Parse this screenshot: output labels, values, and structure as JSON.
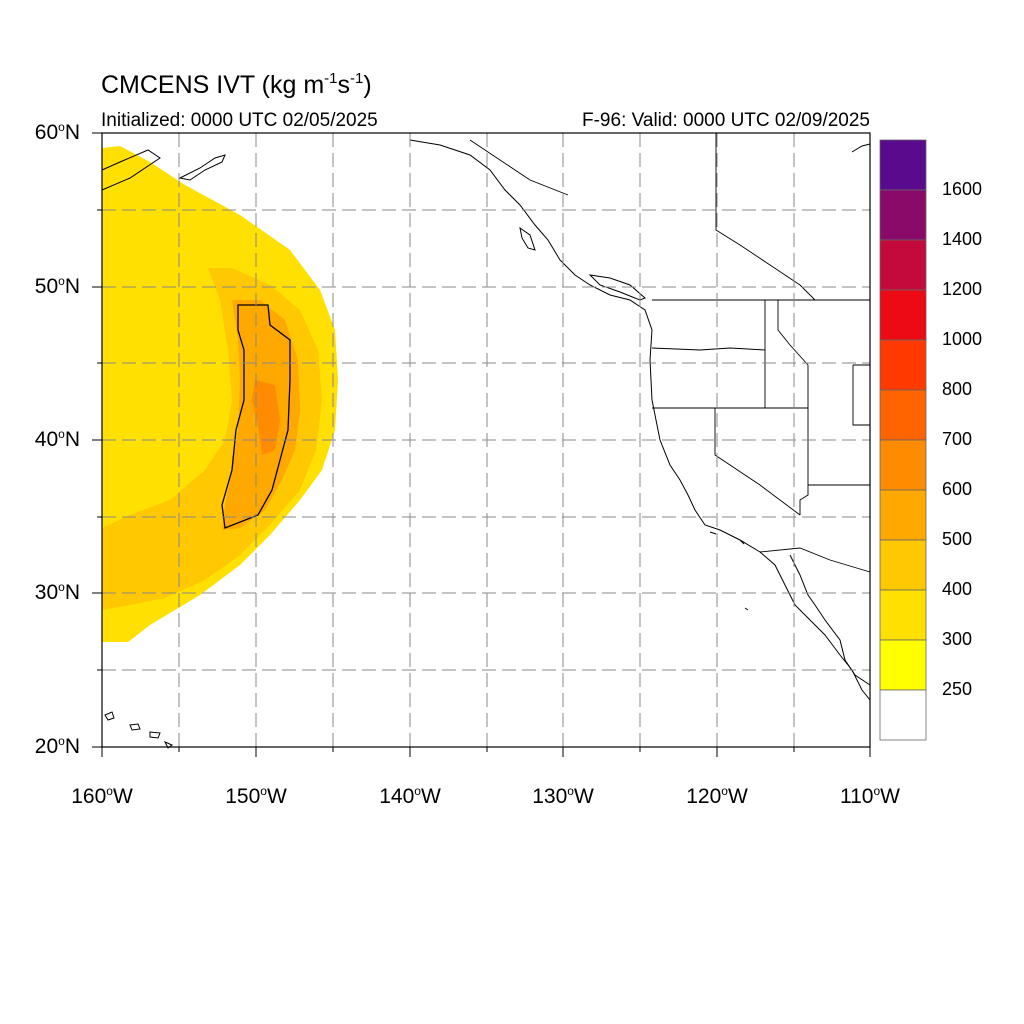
{
  "title": {
    "prefix": "CMCENS IVT (kg m",
    "exp1": "-1",
    "mid": "s",
    "exp2": "-1",
    "suffix": ")"
  },
  "initialized": "Initialized: 0000 UTC 02/05/2025",
  "valid": "F-96: Valid: 0000 UTC 02/09/2025",
  "map": {
    "lon_range": [
      -160,
      -110
    ],
    "lat_range": [
      20,
      60
    ],
    "projection": "cylindrical equidistant",
    "grid": true,
    "lat_labels": [
      {
        "deg": "60",
        "hemi": "N"
      },
      {
        "deg": "50",
        "hemi": "N"
      },
      {
        "deg": "40",
        "hemi": "N"
      },
      {
        "deg": "30",
        "hemi": "N"
      },
      {
        "deg": "20",
        "hemi": "N"
      }
    ],
    "lon_labels": [
      {
        "deg": "160",
        "hemi": "W"
      },
      {
        "deg": "150",
        "hemi": "W"
      },
      {
        "deg": "140",
        "hemi": "W"
      },
      {
        "deg": "130",
        "hemi": "W"
      },
      {
        "deg": "120",
        "hemi": "W"
      },
      {
        "deg": "110",
        "hemi": "W"
      }
    ]
  },
  "colorbar": {
    "labels": [
      "1600",
      "1400",
      "1200",
      "1000",
      "800",
      "700",
      "600",
      "500",
      "400",
      "300",
      "250"
    ],
    "colors": [
      "#5a0a8c",
      "#8a0a6a",
      "#c40a3c",
      "#ec0a14",
      "#ff3a00",
      "#ff6400",
      "#ff8c00",
      "#ffa800",
      "#ffc800",
      "#ffe000",
      "#ffff00",
      "#ffffff"
    ]
  }
}
